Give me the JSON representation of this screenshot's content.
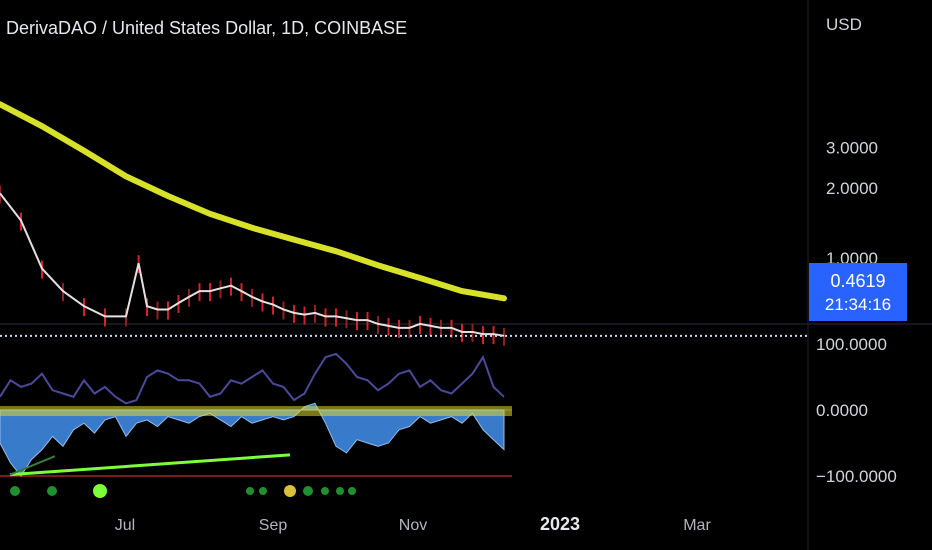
{
  "header": {
    "title": "DerivaDAO / United States Dollar, 1D, COINBASE",
    "currency": "USD"
  },
  "price_tag": {
    "price": "0.4619",
    "countdown": "21:34:16"
  },
  "colors": {
    "background": "#000000",
    "ma_yellow": "#d8e12a",
    "price_line": "#e8e0e0",
    "td_green": "#1fbf3a",
    "td_red": "#d3222b",
    "td_orange": "#ff8a00",
    "td_blue": "#3aa0e0",
    "wt_fill": "#3d82d6",
    "wt_line": "#4b4a9a",
    "signal": "#e0d832",
    "divergence": "#7dff3a",
    "price_tag_bg": "#2962ff"
  },
  "chart_data": [
    {
      "type": "line",
      "title": "DerivaDAO / United States Dollar, 1D, COINBASE",
      "price_axis_ticks": [
        "3.0000",
        "2.0000",
        "1.0000"
      ],
      "time_axis_ticks": [
        "Jul",
        "Sep",
        "Nov",
        "2023",
        "Mar"
      ],
      "scale": "log",
      "ylim": [
        0.28,
        5.0
      ],
      "last_price": 0.4619,
      "x_range_days": [
        0,
        320
      ],
      "series": [
        {
          "role": "price",
          "x": [
            0,
            10,
            20,
            30,
            40,
            50,
            60,
            66,
            70,
            75,
            80,
            85,
            90,
            95,
            100,
            105,
            110,
            115,
            120,
            125,
            130,
            135,
            140,
            145,
            150,
            155,
            160,
            165,
            170,
            175,
            180,
            185,
            190,
            195,
            200,
            205,
            210,
            215,
            220,
            225,
            230,
            235,
            240
          ],
          "values": [
            1.9,
            1.45,
            0.9,
            0.72,
            0.62,
            0.56,
            0.56,
            0.95,
            0.62,
            0.6,
            0.6,
            0.64,
            0.68,
            0.72,
            0.72,
            0.74,
            0.76,
            0.72,
            0.68,
            0.65,
            0.63,
            0.6,
            0.58,
            0.57,
            0.58,
            0.56,
            0.56,
            0.55,
            0.54,
            0.54,
            0.52,
            0.51,
            0.5,
            0.5,
            0.52,
            0.51,
            0.5,
            0.5,
            0.48,
            0.48,
            0.47,
            0.47,
            0.4619
          ]
        },
        {
          "role": "moving-average",
          "x": [
            0,
            20,
            40,
            60,
            80,
            100,
            120,
            140,
            160,
            180,
            200,
            220,
            240
          ],
          "values": [
            4.6,
            3.7,
            2.9,
            2.25,
            1.85,
            1.55,
            1.35,
            1.2,
            1.07,
            0.93,
            0.82,
            0.72,
            0.67
          ]
        }
      ]
    },
    {
      "type": "area",
      "axis_ticks": [
        "100.0000",
        "0.0000",
        "−100.0000"
      ],
      "ylim": [
        -115,
        115
      ],
      "x_range_days": [
        0,
        240
      ],
      "series": [
        {
          "role": "histogram-area",
          "x": [
            0,
            5,
            10,
            15,
            20,
            25,
            30,
            35,
            40,
            45,
            50,
            55,
            60,
            65,
            70,
            75,
            80,
            85,
            90,
            95,
            100,
            105,
            110,
            115,
            120,
            125,
            130,
            135,
            140,
            145,
            150,
            155,
            160,
            165,
            170,
            175,
            180,
            185,
            190,
            195,
            200,
            205,
            210,
            215,
            220,
            225,
            230,
            235,
            240
          ],
          "values": [
            -50,
            -80,
            -100,
            -75,
            -60,
            -40,
            -55,
            -30,
            -20,
            -35,
            -15,
            -10,
            -40,
            -20,
            -15,
            -25,
            -10,
            -15,
            -20,
            -10,
            -5,
            -15,
            -25,
            -10,
            -20,
            -15,
            -10,
            -15,
            -10,
            5,
            10,
            -20,
            -55,
            -65,
            -45,
            -50,
            -55,
            -50,
            -30,
            -25,
            -10,
            -20,
            -15,
            -10,
            -20,
            -5,
            -30,
            -45,
            -60
          ]
        },
        {
          "role": "oscillator-line",
          "x": [
            0,
            5,
            10,
            15,
            20,
            25,
            30,
            35,
            40,
            45,
            50,
            55,
            60,
            65,
            70,
            75,
            80,
            85,
            90,
            95,
            100,
            105,
            110,
            115,
            120,
            125,
            130,
            135,
            140,
            145,
            150,
            155,
            160,
            165,
            170,
            175,
            180,
            185,
            190,
            195,
            200,
            205,
            210,
            215,
            220,
            225,
            230,
            235,
            240
          ],
          "values": [
            20,
            45,
            35,
            40,
            55,
            30,
            25,
            20,
            45,
            25,
            35,
            20,
            10,
            15,
            50,
            60,
            55,
            45,
            45,
            40,
            20,
            25,
            45,
            40,
            50,
            60,
            40,
            35,
            15,
            25,
            55,
            80,
            85,
            70,
            50,
            45,
            30,
            40,
            55,
            60,
            35,
            45,
            30,
            25,
            40,
            55,
            80,
            35,
            20
          ]
        }
      ]
    }
  ]
}
